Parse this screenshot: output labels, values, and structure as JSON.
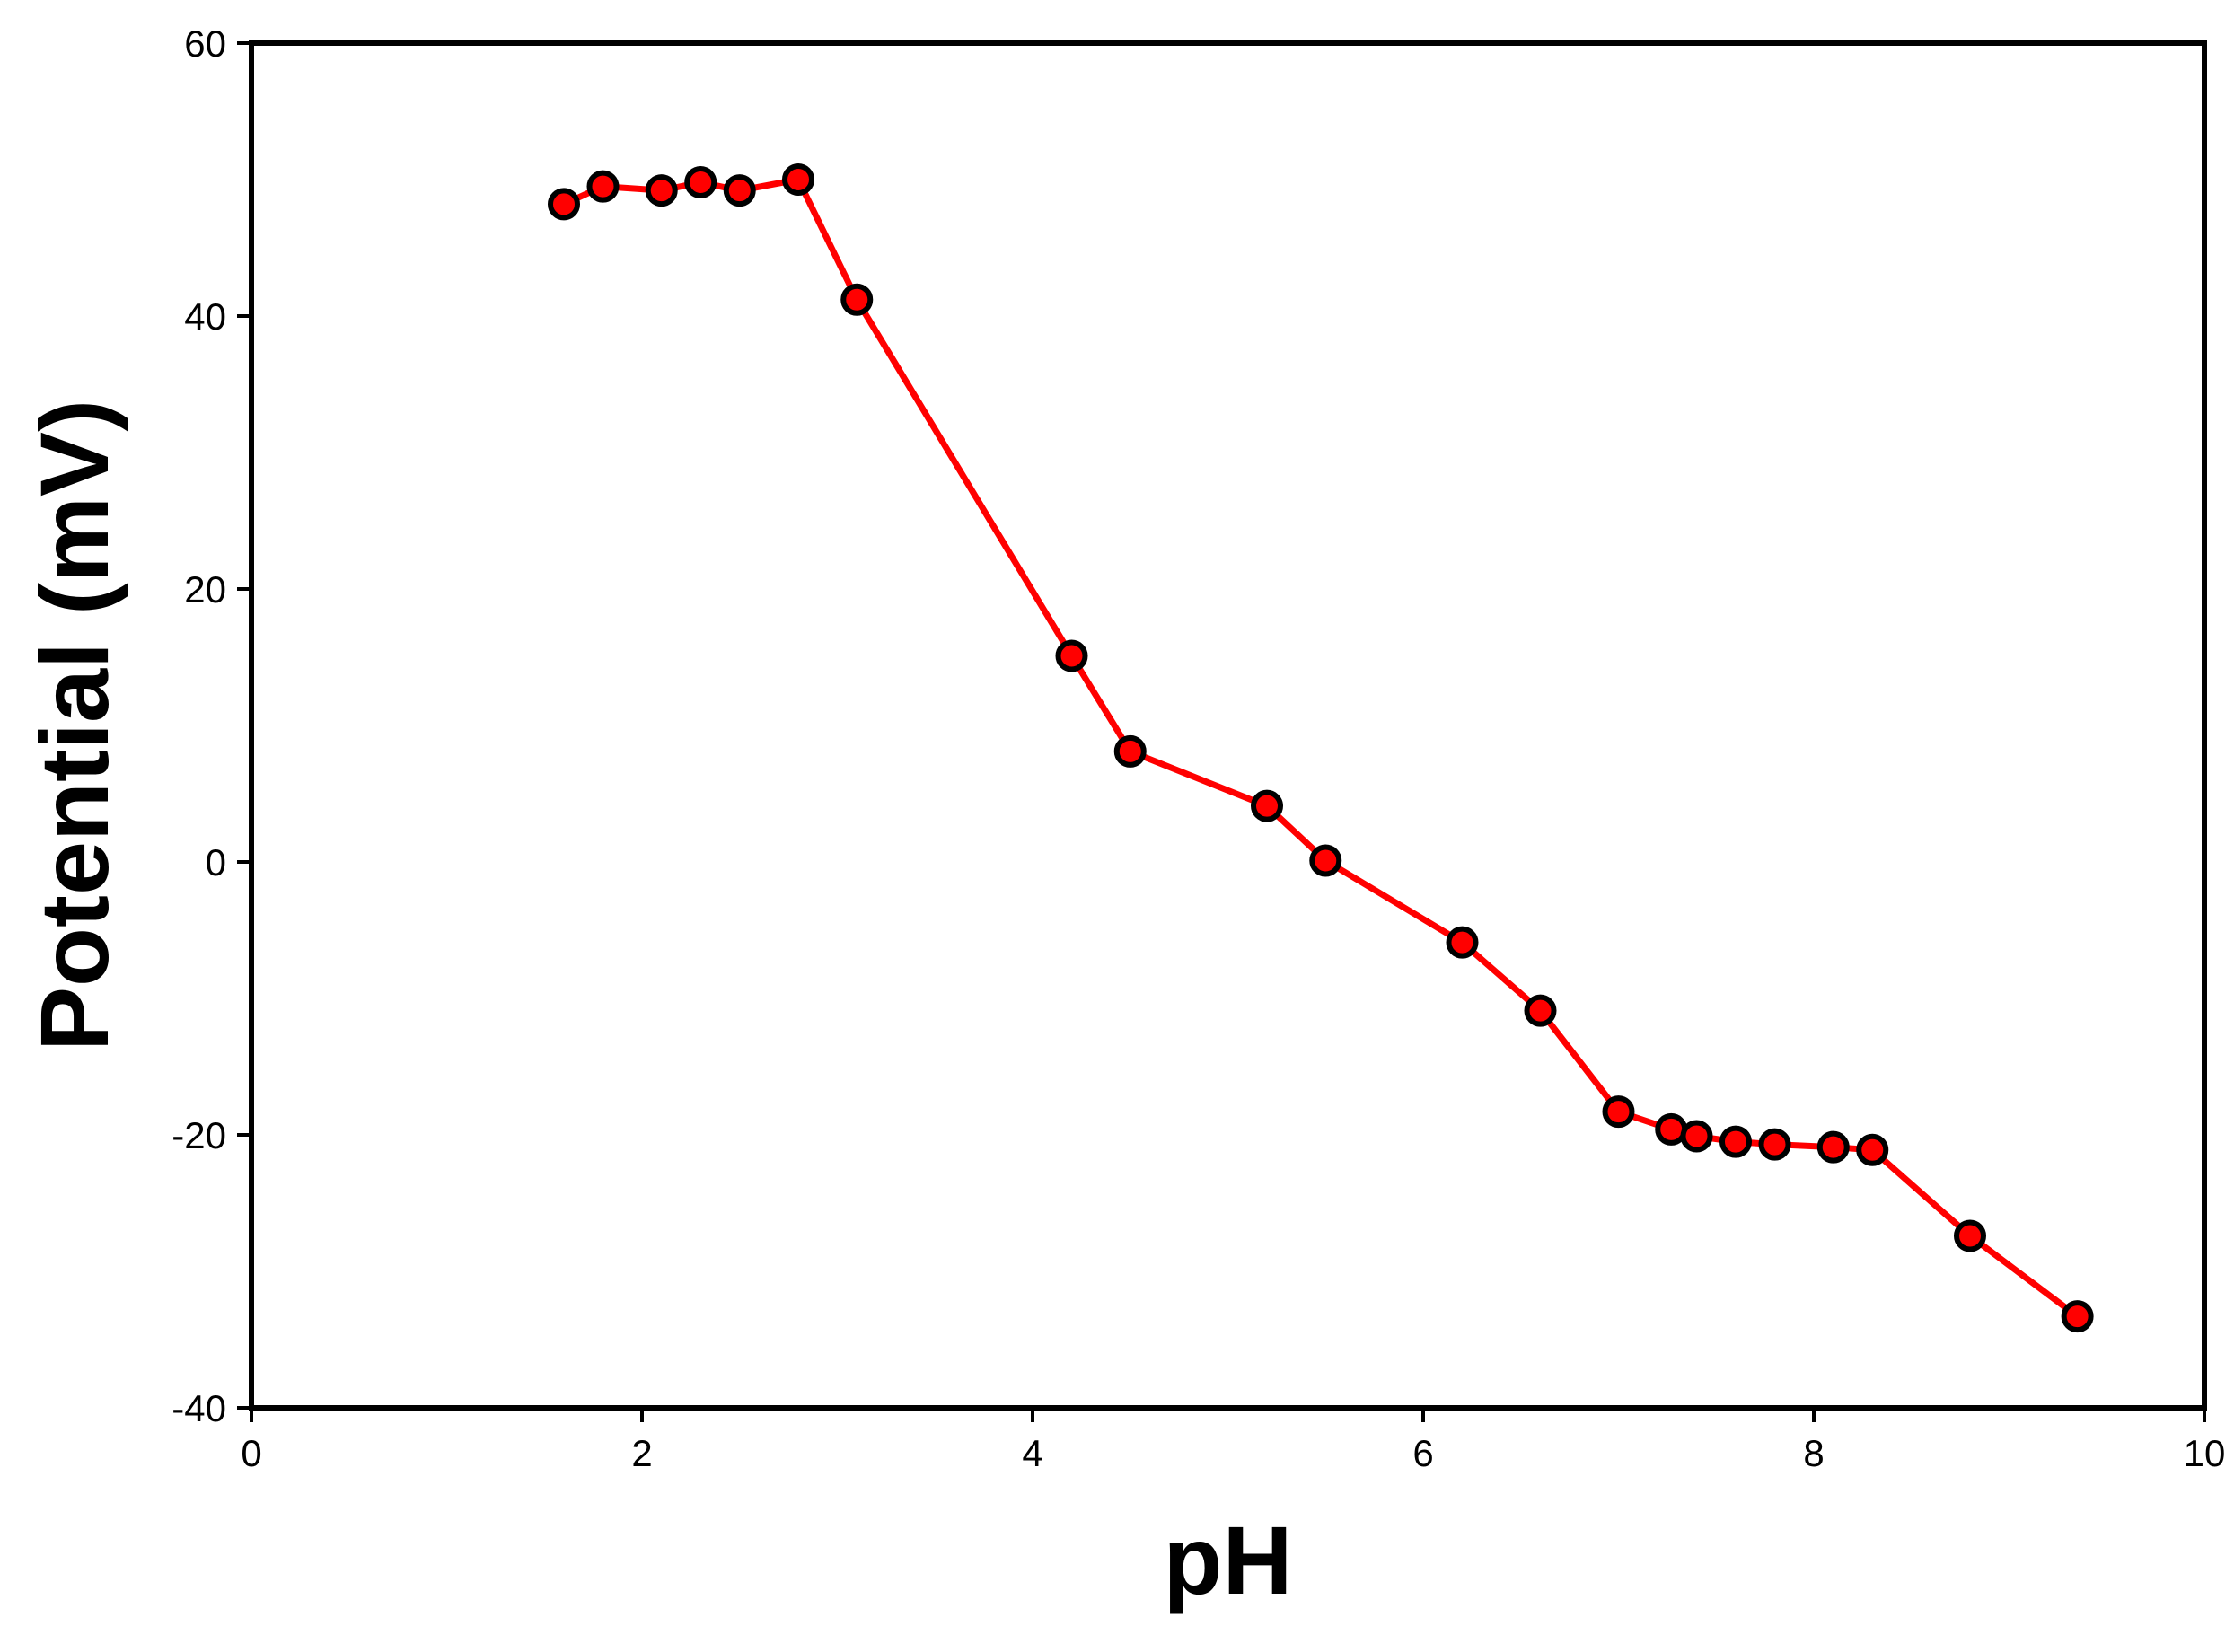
{
  "chart_data": {
    "type": "line",
    "title": "",
    "xlabel": "pH",
    "ylabel": "Potential (mV)",
    "xlim": [
      0,
      10
    ],
    "ylim": [
      -40,
      60
    ],
    "x_ticks": [
      0,
      2,
      4,
      6,
      8,
      10
    ],
    "y_ticks": [
      -40,
      -20,
      0,
      20,
      40,
      60
    ],
    "grid": false,
    "legend": "none",
    "colors": {
      "line": "#ff0000",
      "marker_fill": "#ff0000",
      "marker_edge": "#000000",
      "axes": "#000000"
    },
    "series": [
      {
        "x": [
          1.6,
          1.8,
          2.1,
          2.3,
          2.5,
          2.8,
          3.1,
          4.2,
          4.5,
          5.2,
          5.5,
          6.2,
          6.6,
          7.0,
          7.27,
          7.4,
          7.6,
          7.8,
          8.1,
          8.3,
          8.8,
          9.35
        ],
        "values": [
          48.2,
          49.5,
          49.2,
          49.8,
          49.2,
          50.0,
          41.2,
          15.1,
          8.1,
          4.1,
          0.1,
          -5.9,
          -10.9,
          -18.3,
          -19.6,
          -20.1,
          -20.5,
          -20.7,
          -20.9,
          -21.1,
          -27.4,
          -33.3
        ]
      }
    ]
  }
}
